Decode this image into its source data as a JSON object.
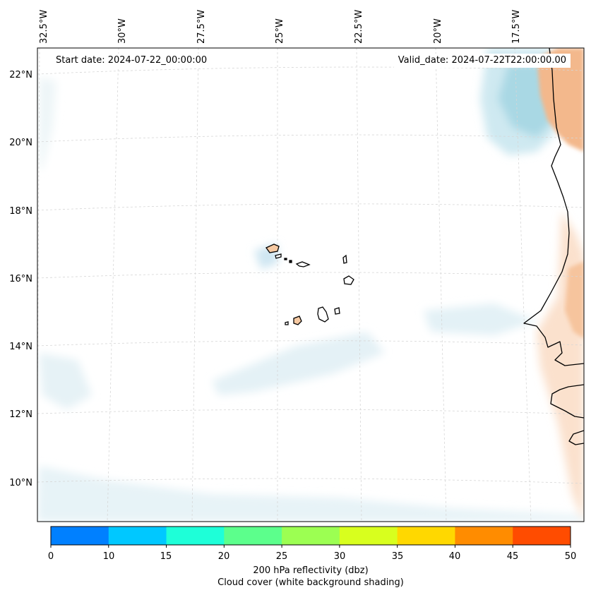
{
  "map": {
    "start_date": "Start date: 2024-07-22_00:00:00",
    "valid_date": "Valid_date: 2024-07-22T22:00:00.00",
    "lon_labels": [
      "32.5°W",
      "30°W",
      "27.5°W",
      "25°W",
      "22.5°W",
      "20°W",
      "17.5°W"
    ],
    "lat_labels": [
      "22°N",
      "20°N",
      "18°N",
      "16°N",
      "14°N",
      "12°N",
      "10°N"
    ],
    "region": "Cape Verde islands and West African coast",
    "colors": {
      "cloud": "#d8edf3",
      "cloud_dense": "#a9d8e4",
      "land_shade": "#f7c9a2",
      "land_shade_dense": "#f0a26a",
      "island_fill": "#f6c9a2",
      "coast": "#000000"
    }
  },
  "colorbar": {
    "ticks": [
      "0",
      "10",
      "15",
      "20",
      "25",
      "30",
      "35",
      "40",
      "45",
      "50"
    ],
    "colors": [
      "#0080ff",
      "#00c8ff",
      "#1effd8",
      "#5cff8c",
      "#9cff52",
      "#d8ff1e",
      "#ffd800",
      "#ff8c00",
      "#ff4c00"
    ],
    "title_line1": "200 hPa reflectivity (dbz)",
    "title_line2": "Cloud cover (white background shading)"
  }
}
